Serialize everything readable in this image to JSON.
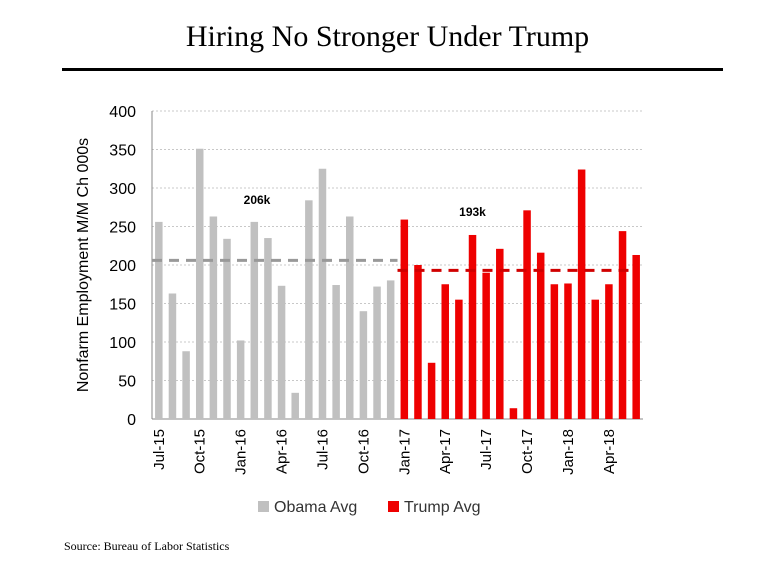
{
  "chart_data": {
    "type": "bar",
    "title": "Hiring No Stronger Under Trump",
    "ylabel": "Nonfarm Employment M/M Ch 000s",
    "xlabel": "",
    "ylim": [
      0,
      400
    ],
    "yticks": [
      0,
      50,
      100,
      150,
      200,
      250,
      300,
      350,
      400
    ],
    "grid": true,
    "xtick_labels": [
      "Jul-15",
      "Oct-15",
      "Jan-16",
      "Apr-16",
      "Jul-16",
      "Oct-16",
      "Jan-17",
      "Apr-17",
      "Jul-17",
      "Oct-17",
      "Jan-18",
      "Apr-18"
    ],
    "series": [
      {
        "name": "Obama Avg",
        "color": "#c0c0c0",
        "average": 206,
        "average_label": "206k",
        "start_month": "Jul-15",
        "values": [
          256,
          163,
          88,
          351,
          263,
          234,
          102,
          256,
          235,
          173,
          34,
          284,
          325,
          174,
          263,
          140,
          172,
          180
        ]
      },
      {
        "name": "Trump Avg",
        "color": "#ee0000",
        "average": 193,
        "average_label": "193k",
        "start_month": "Jan-17",
        "values": [
          259,
          200,
          73,
          175,
          155,
          239,
          190,
          221,
          14,
          271,
          216,
          175,
          176,
          324,
          155,
          175,
          244,
          213
        ]
      }
    ],
    "legend": "bottom"
  },
  "source": "Source: Bureau of Labor Statistics"
}
